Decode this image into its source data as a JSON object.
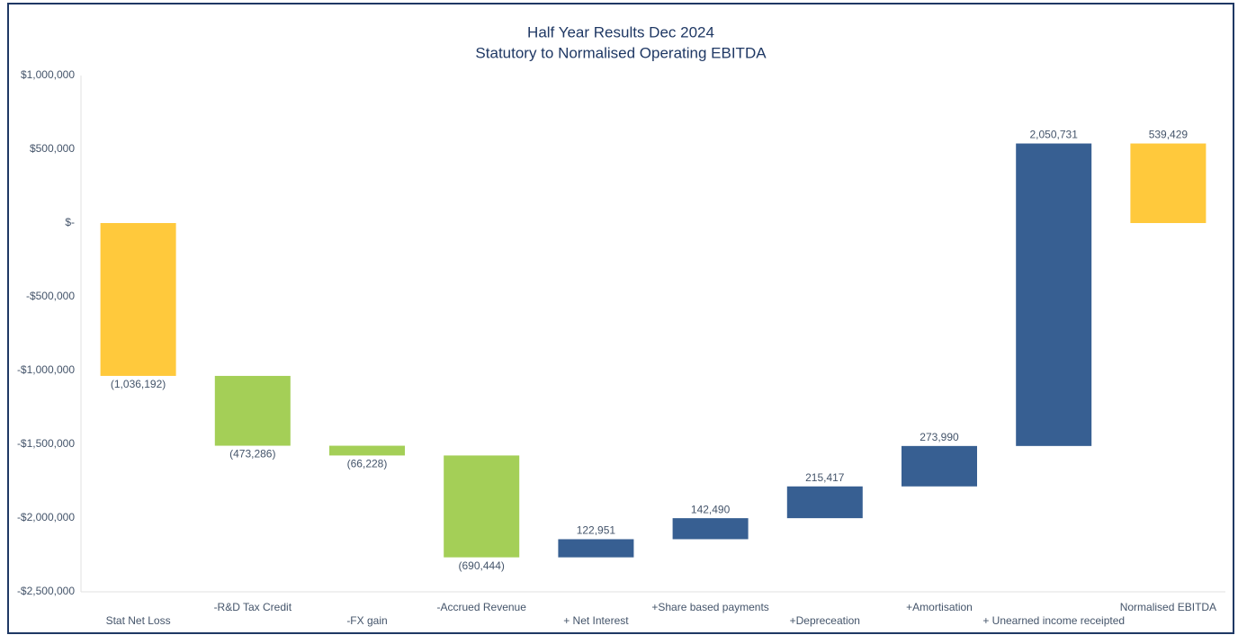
{
  "chart_data": {
    "type": "waterfall",
    "title": "Half Year Results Dec 2024",
    "subtitle": "Statutory to Normalised Operating EBITDA",
    "categories": [
      "Stat Net Loss",
      "-R&D Tax Credit",
      "-FX gain",
      "-Accrued Revenue",
      "+ Net Interest",
      "+Share based payments",
      "+Depreceation",
      "+Amortisation",
      "+ Unearned income receipted",
      "Normalised EBITDA"
    ],
    "values": [
      -1036192,
      -473286,
      -66228,
      -690444,
      122951,
      142490,
      215417,
      273990,
      2050731,
      539429
    ],
    "value_labels": [
      "(1,036,192)",
      "(473,286)",
      "(66,228)",
      "(690,444)",
      "122,951",
      "142,490",
      "215,417",
      "273,990",
      "2,050,731",
      "539,429"
    ],
    "ylim": [
      -2500000,
      1000000
    ],
    "yticks": [
      {
        "value": 1000000,
        "label": "$1,000,000"
      },
      {
        "value": 500000,
        "label": "$500,000"
      },
      {
        "value": 0,
        "label": "$-"
      },
      {
        "value": -500000,
        "label": "-$500,000"
      },
      {
        "value": -1000000,
        "label": "-$1,000,000"
      },
      {
        "value": -1500000,
        "label": "-$1,500,000"
      },
      {
        "value": -2000000,
        "label": "-$2,000,000"
      },
      {
        "value": -2500000,
        "label": "-$2,500,000"
      }
    ],
    "grid": false,
    "color_total": "#ffc93c",
    "color_decrease": "#a4cf57",
    "color_increase": "#375f92"
  }
}
